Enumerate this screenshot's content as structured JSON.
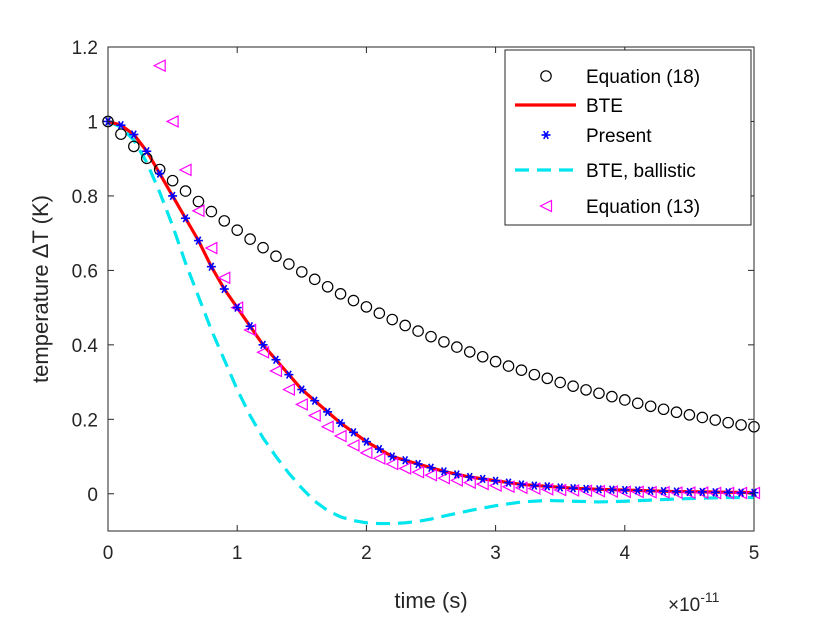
{
  "chart_data": {
    "type": "line",
    "title": "",
    "xlabel": "time (s)",
    "ylabel": "temperature ΔT (K)",
    "x_exponent_label": "×10",
    "x_exponent": "-11",
    "xlim": [
      0,
      5
    ],
    "ylim": [
      -0.1,
      1.2
    ],
    "xticks": [
      0,
      1,
      2,
      3,
      4,
      5
    ],
    "xtick_labels": [
      "0",
      "1",
      "2",
      "3",
      "4",
      "5"
    ],
    "yticks": [
      0,
      0.2,
      0.4,
      0.6,
      0.8,
      1,
      1.2
    ],
    "ytick_labels": [
      "0",
      "0.2",
      "0.4",
      "0.6",
      "0.8",
      "1",
      "1.2"
    ],
    "grid": false,
    "legend_position": "top-right",
    "series": [
      {
        "name": "Equation (18)",
        "style": "circle",
        "color": "#000000",
        "x": [
          0,
          0.1,
          0.2,
          0.3,
          0.4,
          0.5,
          0.6,
          0.7,
          0.8,
          0.9,
          1.0,
          1.1,
          1.2,
          1.3,
          1.4,
          1.5,
          1.6,
          1.7,
          1.8,
          1.9,
          2.0,
          2.1,
          2.2,
          2.3,
          2.4,
          2.5,
          2.6,
          2.7,
          2.8,
          2.9,
          3.0,
          3.1,
          3.2,
          3.3,
          3.4,
          3.5,
          3.6,
          3.7,
          3.8,
          3.9,
          4.0,
          4.1,
          4.2,
          4.3,
          4.4,
          4.5,
          4.6,
          4.7,
          4.8,
          4.9,
          5.0
        ],
        "y": [
          1.0,
          0.966,
          0.933,
          0.901,
          0.871,
          0.841,
          0.813,
          0.785,
          0.758,
          0.733,
          0.708,
          0.684,
          0.661,
          0.638,
          0.617,
          0.596,
          0.576,
          0.556,
          0.537,
          0.519,
          0.502,
          0.485,
          0.468,
          0.452,
          0.437,
          0.422,
          0.408,
          0.394,
          0.381,
          0.368,
          0.355,
          0.343,
          0.332,
          0.32,
          0.31,
          0.299,
          0.289,
          0.279,
          0.27,
          0.261,
          0.252,
          0.243,
          0.235,
          0.227,
          0.219,
          0.212,
          0.205,
          0.198,
          0.191,
          0.185,
          0.18
        ]
      },
      {
        "name": "BTE",
        "style": "solid",
        "color": "#ff0000",
        "x": [
          0,
          0.1,
          0.2,
          0.3,
          0.4,
          0.5,
          0.6,
          0.7,
          0.8,
          0.9,
          1.0,
          1.1,
          1.2,
          1.3,
          1.4,
          1.5,
          1.6,
          1.7,
          1.8,
          1.9,
          2.0,
          2.2,
          2.4,
          2.6,
          2.8,
          3.0,
          3.2,
          3.4,
          3.6,
          3.8,
          4.0,
          4.2,
          4.4,
          4.6,
          4.8,
          5.0
        ],
        "y": [
          1.0,
          0.99,
          0.965,
          0.92,
          0.86,
          0.8,
          0.74,
          0.68,
          0.61,
          0.55,
          0.5,
          0.45,
          0.4,
          0.36,
          0.32,
          0.28,
          0.25,
          0.22,
          0.19,
          0.165,
          0.14,
          0.1,
          0.08,
          0.06,
          0.045,
          0.035,
          0.025,
          0.02,
          0.015,
          0.012,
          0.01,
          0.008,
          0.006,
          0.005,
          0.004,
          0.003
        ]
      },
      {
        "name": "Present",
        "style": "asterisk",
        "color": "#0000ff",
        "x": [
          0,
          0.1,
          0.2,
          0.3,
          0.4,
          0.5,
          0.6,
          0.7,
          0.8,
          0.9,
          1.0,
          1.1,
          1.2,
          1.3,
          1.4,
          1.5,
          1.6,
          1.7,
          1.8,
          1.9,
          2.0,
          2.1,
          2.2,
          2.3,
          2.4,
          2.5,
          2.6,
          2.7,
          2.8,
          2.9,
          3.0,
          3.1,
          3.2,
          3.3,
          3.4,
          3.5,
          3.6,
          3.7,
          3.8,
          3.9,
          4.0,
          4.1,
          4.2,
          4.3,
          4.4,
          4.5,
          4.6,
          4.7,
          4.8,
          4.9,
          5.0
        ],
        "y": [
          1.0,
          0.99,
          0.965,
          0.92,
          0.86,
          0.8,
          0.74,
          0.68,
          0.61,
          0.55,
          0.5,
          0.45,
          0.4,
          0.36,
          0.32,
          0.28,
          0.25,
          0.22,
          0.19,
          0.165,
          0.14,
          0.12,
          0.1,
          0.09,
          0.08,
          0.07,
          0.06,
          0.052,
          0.045,
          0.04,
          0.035,
          0.03,
          0.025,
          0.022,
          0.02,
          0.017,
          0.015,
          0.013,
          0.012,
          0.011,
          0.01,
          0.009,
          0.008,
          0.007,
          0.006,
          0.005,
          0.005,
          0.004,
          0.004,
          0.003,
          0.003
        ]
      },
      {
        "name": "BTE, ballistic",
        "style": "dashed",
        "color": "#00e5ee",
        "x": [
          0,
          0.1,
          0.2,
          0.3,
          0.4,
          0.5,
          0.6,
          0.7,
          0.8,
          0.9,
          1.0,
          1.1,
          1.2,
          1.3,
          1.4,
          1.5,
          1.6,
          1.7,
          1.8,
          1.9,
          2.0,
          2.1,
          2.2,
          2.3,
          2.4,
          2.5,
          2.6,
          2.8,
          3.0,
          3.2,
          3.4,
          3.6,
          3.8,
          4.0,
          4.2,
          4.4,
          4.6,
          4.8,
          5.0
        ],
        "y": [
          1.0,
          0.985,
          0.95,
          0.89,
          0.81,
          0.72,
          0.62,
          0.53,
          0.44,
          0.36,
          0.28,
          0.21,
          0.15,
          0.1,
          0.055,
          0.015,
          -0.02,
          -0.045,
          -0.062,
          -0.072,
          -0.078,
          -0.08,
          -0.08,
          -0.078,
          -0.074,
          -0.068,
          -0.06,
          -0.045,
          -0.032,
          -0.022,
          -0.018,
          -0.02,
          -0.022,
          -0.02,
          -0.017,
          -0.014,
          -0.012,
          -0.01,
          -0.01
        ]
      },
      {
        "name": "Equation (13)",
        "style": "triangle-left",
        "color": "#ff00ff",
        "x": [
          0.4,
          0.5,
          0.6,
          0.7,
          0.8,
          0.9,
          1.0,
          1.1,
          1.2,
          1.3,
          1.4,
          1.5,
          1.6,
          1.7,
          1.8,
          1.9,
          2.0,
          2.1,
          2.2,
          2.3,
          2.4,
          2.5,
          2.6,
          2.7,
          2.8,
          2.9,
          3.0,
          3.1,
          3.2,
          3.3,
          3.4,
          3.5,
          3.6,
          3.7,
          3.8,
          3.9,
          4.0,
          4.1,
          4.2,
          4.3,
          4.4,
          4.5,
          4.6,
          4.7,
          4.8,
          4.9,
          5.0
        ],
        "y": [
          1.15,
          1.0,
          0.87,
          0.76,
          0.66,
          0.58,
          0.5,
          0.44,
          0.38,
          0.33,
          0.28,
          0.24,
          0.21,
          0.18,
          0.155,
          0.13,
          0.11,
          0.095,
          0.08,
          0.068,
          0.058,
          0.05,
          0.042,
          0.036,
          0.03,
          0.026,
          0.022,
          0.019,
          0.016,
          0.014,
          0.012,
          0.01,
          0.009,
          0.008,
          0.007,
          0.006,
          0.005,
          0.005,
          0.004,
          0.004,
          0.003,
          0.003,
          0.003,
          0.002,
          0.002,
          0.002,
          0.002
        ]
      }
    ]
  }
}
